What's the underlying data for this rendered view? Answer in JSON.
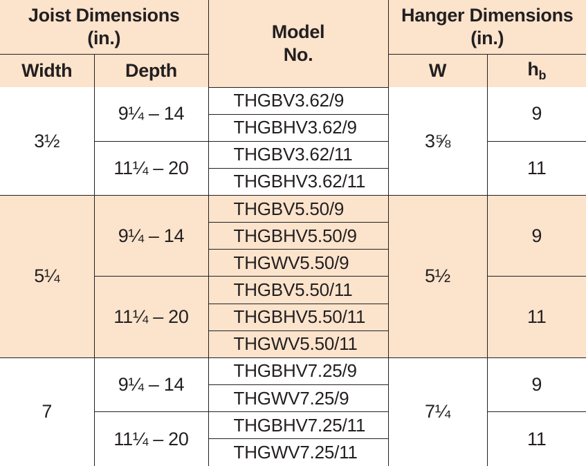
{
  "header": {
    "joist_dimensions": "Joist Dimensions",
    "joist_units": "(in.)",
    "model_line1": "Model",
    "model_line2": "No.",
    "hanger_dimensions": "Hanger Dimensions",
    "hanger_units": "(in.)",
    "width": "Width",
    "depth": "Depth",
    "w": "W",
    "hb_main": "h",
    "hb_sub": "b"
  },
  "colors": {
    "tint": "#fbe3cc",
    "border": "#231f20",
    "text": "#231f20"
  },
  "groups": [
    {
      "width": "3½",
      "w": "3⅝",
      "tinted": false,
      "depth_ranges": [
        {
          "depth": "9¼ – 14",
          "hb": "9",
          "models": [
            "THGBV3.62/9",
            "THGBHV3.62/9"
          ]
        },
        {
          "depth": "11¼ – 20",
          "hb": "11",
          "models": [
            "THGBV3.62/11",
            "THGBHV3.62/11"
          ]
        }
      ]
    },
    {
      "width": "5¼",
      "w": "5½",
      "tinted": true,
      "depth_ranges": [
        {
          "depth": "9¼ – 14",
          "hb": "9",
          "models": [
            "THGBV5.50/9",
            "THGBHV5.50/9",
            "THGWV5.50/9"
          ]
        },
        {
          "depth": "11¼ – 20",
          "hb": "11",
          "models": [
            "THGBV5.50/11",
            "THGBHV5.50/11",
            "THGWV5.50/11"
          ]
        }
      ]
    },
    {
      "width": "7",
      "w": "7¼",
      "tinted": false,
      "depth_ranges": [
        {
          "depth": "9¼ – 14",
          "hb": "9",
          "models": [
            "THGBHV7.25/9",
            "THGWV7.25/9"
          ]
        },
        {
          "depth": "11¼ – 20",
          "hb": "11",
          "models": [
            "THGBHV7.25/11",
            "THGWV7.25/11"
          ]
        }
      ]
    }
  ]
}
